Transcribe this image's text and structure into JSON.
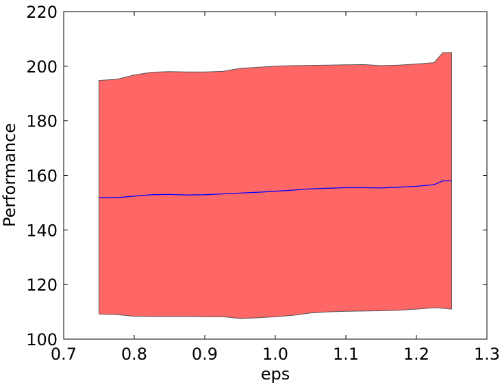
{
  "chart_data": {
    "type": "area",
    "xlabel": "eps",
    "ylabel": "Performance",
    "xlim": [
      0.7,
      1.3
    ],
    "ylim": [
      100,
      220
    ],
    "xticks": [
      "0.7",
      "0.8",
      "0.9",
      "1.0",
      "1.1",
      "1.2",
      "1.3"
    ],
    "yticks": [
      "100",
      "120",
      "140",
      "160",
      "180",
      "200",
      "220"
    ],
    "grid": false,
    "legend": "none",
    "colors": {
      "band_fill": "#ff6666",
      "band_edge": "#555555",
      "line": "#0000ff"
    },
    "x": [
      0.75,
      0.775,
      0.8,
      0.825,
      0.85,
      0.875,
      0.9,
      0.925,
      0.95,
      0.975,
      1.0,
      1.025,
      1.05,
      1.075,
      1.1,
      1.125,
      1.15,
      1.175,
      1.2,
      1.225,
      1.2375,
      1.25
    ],
    "series": [
      {
        "role": "mean",
        "values": [
          151.8,
          151.8,
          152.4,
          152.9,
          153.0,
          152.8,
          152.9,
          153.2,
          153.5,
          153.8,
          154.2,
          154.6,
          155.1,
          155.3,
          155.5,
          155.5,
          155.4,
          155.7,
          156.0,
          156.6,
          158.0,
          158.0
        ]
      },
      {
        "role": "upper",
        "values": [
          194.8,
          195.2,
          196.8,
          197.8,
          198.0,
          197.9,
          197.9,
          198.1,
          199.2,
          199.6,
          200.0,
          200.2,
          200.3,
          200.4,
          200.5,
          200.6,
          200.2,
          200.4,
          200.8,
          201.3,
          205.0,
          205.0
        ]
      },
      {
        "role": "lower",
        "values": [
          109.2,
          109.0,
          108.4,
          108.3,
          108.3,
          108.3,
          108.2,
          108.2,
          107.6,
          107.8,
          108.2,
          108.7,
          109.6,
          110.0,
          110.2,
          110.3,
          110.4,
          110.6,
          111.0,
          111.5,
          111.3,
          111.0
        ]
      }
    ]
  }
}
